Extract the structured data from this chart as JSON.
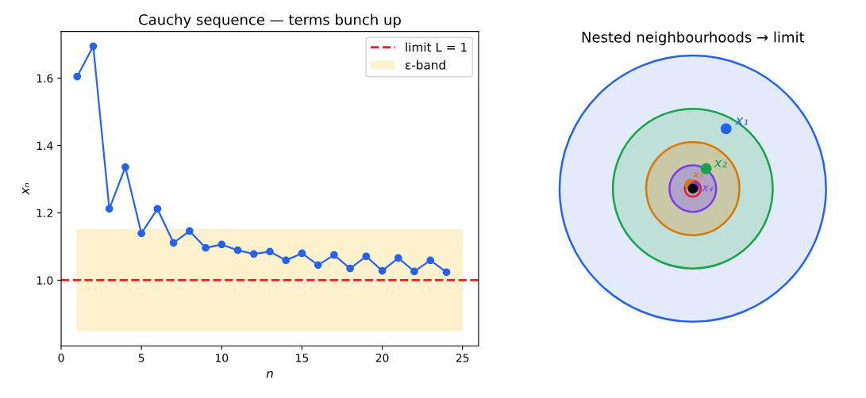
{
  "chart_data": [
    {
      "type": "line",
      "title": "Cauchy sequence — terms bunch up",
      "xlabel": "n",
      "ylabel": "xₙ",
      "x": [
        1,
        2,
        3,
        4,
        5,
        6,
        7,
        8,
        9,
        10,
        11,
        12,
        13,
        14,
        15,
        16,
        17,
        18,
        19,
        20,
        21,
        22,
        23,
        24
      ],
      "series": [
        {
          "color": "#2563eb",
          "values": [
            1.605,
            1.695,
            1.212,
            1.336,
            1.139,
            1.212,
            1.111,
            1.146,
            1.096,
            1.106,
            1.089,
            1.078,
            1.085,
            1.059,
            1.08,
            1.045,
            1.075,
            1.035,
            1.071,
            1.028,
            1.066,
            1.026,
            1.059,
            1.024
          ]
        }
      ],
      "marker": "circle",
      "line_style": "solid",
      "xlim": [
        0,
        26
      ],
      "xticks": [
        0,
        5,
        10,
        15,
        20,
        25
      ],
      "ylim": [
        0.805,
        1.739
      ],
      "yticks": [
        {
          "value": 1,
          "label": "1.0"
        },
        1.2,
        1.4,
        1.6
      ],
      "ref_lines": [
        {
          "axis": "y",
          "value": 1,
          "label": "limit L = 1",
          "color": "#dc2626",
          "line_style": "dashed"
        }
      ],
      "bands": [
        {
          "axis": "y",
          "from": 0.85,
          "to": 1.15,
          "label": "ε-band",
          "color": "#fcefc0"
        }
      ],
      "legend": "top right",
      "grid": false
    },
    {
      "type": "other",
      "title": "Nested neighbourhoods → limit",
      "annotations": [
        "x₁",
        "x₂",
        "x₃",
        "x₄"
      ]
    }
  ]
}
